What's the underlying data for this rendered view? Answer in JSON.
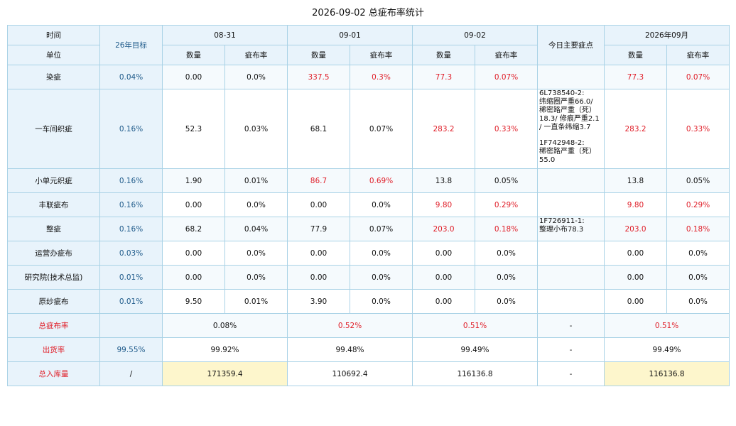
{
  "title": "2026-09-02 总疵布率统计",
  "header": {
    "time_label": "时间",
    "unit_label": "单位",
    "target_label": "26年目标",
    "dates": [
      "08-31",
      "09-01",
      "09-02"
    ],
    "notes_label": "今日主要疵点",
    "month_label": "2026年09月",
    "qty_label": "数量",
    "rate_label": "疵布率"
  },
  "rows": [
    {
      "name": "染疵",
      "target": "0.04%",
      "d1_qty": "0.00",
      "d1_rate": "0.0%",
      "d2_qty": "337.5",
      "d2_rate": "0.3%",
      "d3_qty": "77.3",
      "d3_rate": "0.07%",
      "m_qty": "77.3",
      "m_rate": "0.07%"
    },
    {
      "name": "一车间织疵",
      "target": "0.16%",
      "d1_qty": "52.3",
      "d1_rate": "0.03%",
      "d2_qty": "68.1",
      "d2_rate": "0.07%",
      "d3_qty": "283.2",
      "d3_rate": "0.33%",
      "m_qty": "283.2",
      "m_rate": "0.33%"
    },
    {
      "name": "小单元织疵",
      "target": "0.16%",
      "d1_qty": "1.90",
      "d1_rate": "0.01%",
      "d2_qty": "86.7",
      "d2_rate": "0.69%",
      "d3_qty": "13.8",
      "d3_rate": "0.05%",
      "m_qty": "13.8",
      "m_rate": "0.05%"
    },
    {
      "name": "丰联疵布",
      "target": "0.16%",
      "d1_qty": "0.00",
      "d1_rate": "0.0%",
      "d2_qty": "0.00",
      "d2_rate": "0.0%",
      "d3_qty": "9.80",
      "d3_rate": "0.29%",
      "m_qty": "9.80",
      "m_rate": "0.29%"
    },
    {
      "name": "整疵",
      "target": "0.16%",
      "d1_qty": "68.2",
      "d1_rate": "0.04%",
      "d2_qty": "77.9",
      "d2_rate": "0.07%",
      "d3_qty": "203.0",
      "d3_rate": "0.18%",
      "m_qty": "203.0",
      "m_rate": "0.18%"
    },
    {
      "name": "运营办疵布",
      "target": "0.03%",
      "d1_qty": "0.00",
      "d1_rate": "0.0%",
      "d2_qty": "0.00",
      "d2_rate": "0.0%",
      "d3_qty": "0.00",
      "d3_rate": "0.0%",
      "m_qty": "0.00",
      "m_rate": "0.0%"
    },
    {
      "name": "研究院(技术总监)",
      "target": "0.01%",
      "d1_qty": "0.00",
      "d1_rate": "0.0%",
      "d2_qty": "0.00",
      "d2_rate": "0.0%",
      "d3_qty": "0.00",
      "d3_rate": "0.0%",
      "m_qty": "0.00",
      "m_rate": "0.0%"
    },
    {
      "name": "原纱疵布",
      "target": "0.01%",
      "d1_qty": "9.50",
      "d1_rate": "0.01%",
      "d2_qty": "3.90",
      "d2_rate": "0.0%",
      "d3_qty": "0.00",
      "d3_rate": "0.0%",
      "m_qty": "0.00",
      "m_rate": "0.0%"
    }
  ],
  "notes": {
    "row2_a": "6L738540-2:",
    "row2_b": "纬缩圈严重66.0/",
    "row2_c": "稀密路严重（死）",
    "row2_d": "18.3/ 修痕严重2.1",
    "row2_e": "/ 一直条纬缩3.7",
    "row2_f": "1F742948-2:",
    "row2_g": "稀密路严重（死）",
    "row2_h": "55.0",
    "row5_a": "1F726911-1:",
    "row5_b": "整理小布78.3"
  },
  "summary": {
    "total_rate_label": "总疵布率",
    "total_rate_target": "",
    "total_rate": [
      "0.08%",
      "0.52%",
      "0.51%"
    ],
    "total_rate_notes": "-",
    "total_rate_month": "0.51%",
    "ship_rate_label": "出货率",
    "ship_rate_target": "99.55%",
    "ship_rate": [
      "99.92%",
      "99.48%",
      "99.49%"
    ],
    "ship_rate_notes": "-",
    "ship_rate_month": "99.49%",
    "inbound_label": "总入库量",
    "inbound_target": "/",
    "inbound": [
      "171359.4",
      "110692.4",
      "116136.8"
    ],
    "inbound_notes": "-",
    "inbound_month": "116136.8"
  },
  "colors": {
    "header_bg": "#e8f3fb",
    "border": "#a9d2e6",
    "highlight_red": "#e0202a",
    "target_blue": "#1e5a8a",
    "inbound_yellow": "#fdf6cc"
  }
}
